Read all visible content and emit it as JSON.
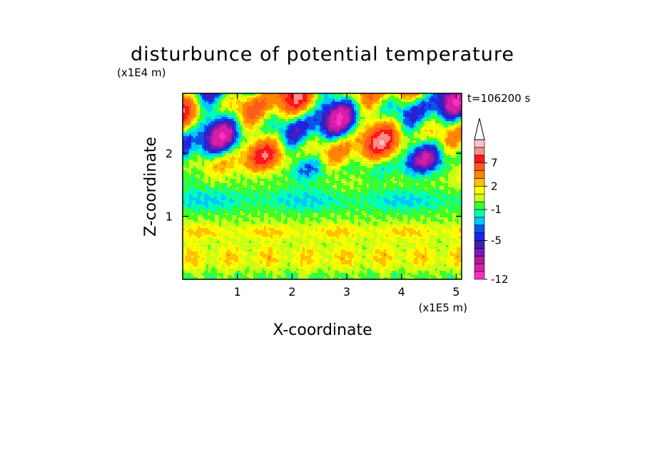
{
  "chart_data": {
    "type": "heatmap",
    "title": "disturbunce of potential temperature",
    "xlabel": "X-coordinate",
    "ylabel": "Z-coordinate",
    "x_unit": "(x1E5 m)",
    "y_unit": "(x1E4 m)",
    "time_label": "t=106200 s",
    "xlim": [
      0,
      5.1
    ],
    "ylim": [
      0,
      2.95
    ],
    "x_ticks": [
      1,
      2,
      3,
      4,
      5
    ],
    "y_ticks": [
      1,
      2
    ],
    "x_tick_labels": [
      "1",
      "2",
      "3",
      "4",
      "5"
    ],
    "y_tick_labels": [
      "1",
      "2"
    ],
    "colorbar": {
      "levels": [
        -12,
        -10,
        -8,
        -7,
        -6,
        -5,
        -4,
        -3,
        -2,
        -1,
        0,
        1,
        2,
        3,
        5,
        7,
        9,
        11
      ],
      "labels": [
        "-12",
        "-5",
        "-1",
        "2",
        "7"
      ],
      "label_values": [
        -12,
        -5,
        -1,
        2,
        7
      ],
      "colors": [
        "#ff2fc3",
        "#d61ea8",
        "#b01aa0",
        "#7c17b4",
        "#3d1fb6",
        "#1e24e6",
        "#0a55e8",
        "#00c8ff",
        "#00ffb4",
        "#3cff2c",
        "#c8ff16",
        "#fffa00",
        "#ffc100",
        "#ff8500",
        "#ff5a1e",
        "#ff1616",
        "#ff8c8c",
        "#ffc2c2"
      ],
      "extend_max": true
    }
  }
}
